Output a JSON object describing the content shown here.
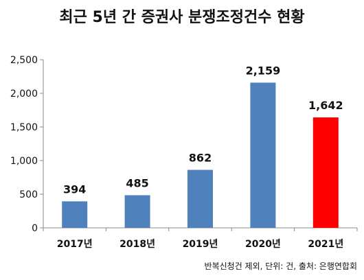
{
  "chart_data": {
    "type": "bar",
    "title": "최근 5년 간 증권사 분쟁조정건수 현황",
    "categories": [
      "2017년",
      "2018년",
      "2019년",
      "2020년",
      "2021년"
    ],
    "values": [
      394,
      485,
      862,
      2159,
      1642
    ],
    "data_labels": [
      "394",
      "485",
      "862",
      "2,159",
      "1,642"
    ],
    "ylim": [
      0,
      2500
    ],
    "yticks": [
      0,
      500,
      1000,
      1500,
      2000,
      2500
    ],
    "ytick_labels": [
      "0",
      "500",
      "1,000",
      "1,500",
      "2,000",
      "2,500"
    ],
    "grid": false,
    "legend": "none",
    "bar_color": "#4F81BD",
    "highlight_color": "#FF0000",
    "highlight_index": 4,
    "footnote": "반복신청건 제외, 단위: 건, 출처: 은행연합회"
  }
}
